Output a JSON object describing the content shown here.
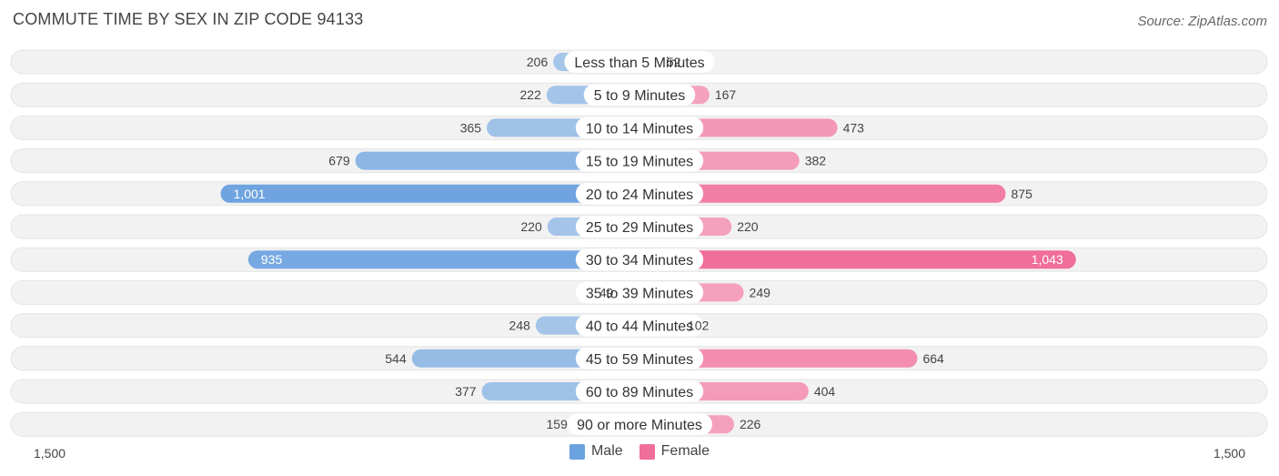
{
  "header": {
    "title": "COMMUTE TIME BY SEX IN ZIP CODE 94133",
    "source": "Source: ZipAtlas.com"
  },
  "colors": {
    "male_light": "#a7c6e9",
    "male_dark": "#6aa1df",
    "female_light": "#f5a3bf",
    "female_dark": "#f06e9a",
    "row_bg": "#f2f2f2",
    "label_bg": "#ffffff"
  },
  "chart_data": {
    "type": "bar",
    "orientation": "horizontal-diverging",
    "categories": [
      "Less than 5 Minutes",
      "5 to 9 Minutes",
      "10 to 14 Minutes",
      "15 to 19 Minutes",
      "20 to 24 Minutes",
      "25 to 29 Minutes",
      "30 to 34 Minutes",
      "35 to 39 Minutes",
      "40 to 44 Minutes",
      "45 to 59 Minutes",
      "60 to 89 Minutes",
      "90 or more Minutes"
    ],
    "series": [
      {
        "name": "Male",
        "values": [
          206,
          222,
          365,
          679,
          1001,
          220,
          935,
          49,
          248,
          544,
          377,
          159
        ]
      },
      {
        "name": "Female",
        "values": [
          52,
          167,
          473,
          382,
          875,
          220,
          1043,
          249,
          102,
          664,
          404,
          226
        ]
      }
    ],
    "value_labels": {
      "Male": [
        "206",
        "222",
        "365",
        "679",
        "1,001",
        "220",
        "935",
        "49",
        "248",
        "544",
        "377",
        "159"
      ],
      "Female": [
        "52",
        "167",
        "473",
        "382",
        "875",
        "220",
        "1,043",
        "249",
        "102",
        "664",
        "404",
        "226"
      ]
    },
    "xlim": [
      -1500,
      1500
    ],
    "axis_tick_labels": {
      "left": "1,500",
      "right": "1,500"
    },
    "legend": {
      "position": "bottom-center",
      "entries": [
        "Male",
        "Female"
      ]
    }
  }
}
